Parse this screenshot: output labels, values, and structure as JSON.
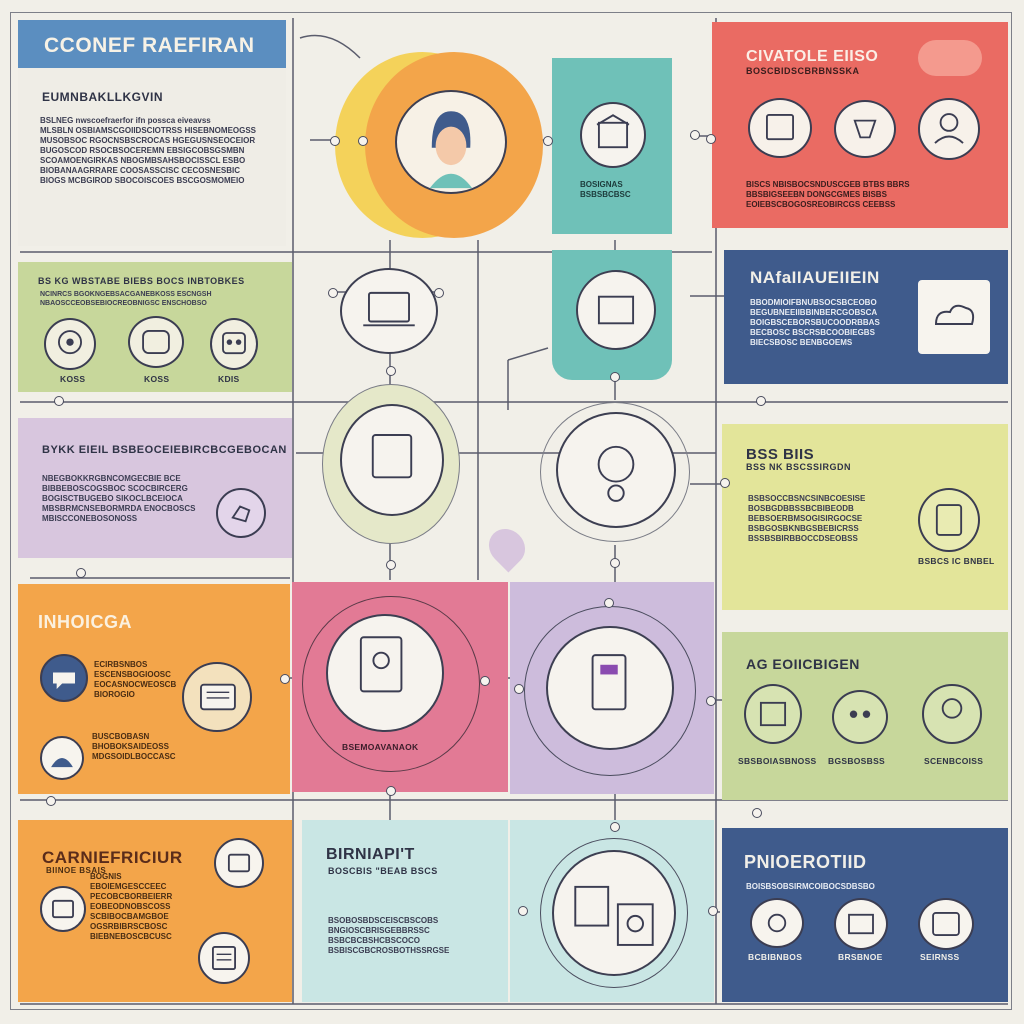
{
  "colors": {
    "background": "#f1efe8",
    "blue_header": "#5b8ec0",
    "green": "#c7d79b",
    "lavender": "#d8c6de",
    "orange": "#f3a54a",
    "teal": "#6fc1b8",
    "coral": "#ea6b63",
    "navy": "#3f5b8c",
    "yellow": "#e3e59a",
    "pink": "#e27a95",
    "purple": "#cdbcdc",
    "light_teal": "#c9e6e4"
  },
  "panels": {
    "header": {
      "title": "CCONEF RAEFIRAN",
      "subtitle": "EUMNBAKLLKGVIN",
      "body": "BSLNEG nwscoefraerfor ifn possca eiveavss\nMLSBLN OSBIAMSCGOIIDSCIOTRSS HISEBNOMEOGSS\nMUSOBSOC RGOCNSBSCROCAS HGEGUSNSEOCEIOR\nBUGOSCOD RSOCBSOCEREMN EBSIGCOBSGSMBN\nSCOAMOENGIRKAS NBOGMBSAHSBOCISSCL ESBO\nBIOBANAAGRRARE COOSASSCISC CECOSNESBIC\nBIOGS MCBGIROD SBOCOISCOES BSCGOSMOMEIO"
    },
    "green": {
      "title": "BS KG WBSTABE BIEBS BOCS INBTOBKES",
      "body": "NCINRCS BGOKNGEBSACGANEBKOSS ESCNGSH\nNBAOSCCEOBSEBIOCREOBNIGSC ENSCHOBSO",
      "captions": [
        "KOSS",
        "KOSS",
        "KDIS"
      ]
    },
    "lavender": {
      "title": "BYKK EIEIL BSBEOCEIEBIRCBCGEBOCAN",
      "body": "NBEGBOKKRGBNCOMGECBIE BCE\nBIBBEBOSCOGSBOC SCOCBIRCERG\nBOGISCTBUGEBO SIKOCLBCEIOCA\nMBSBRMCNSEBORMRDA ENOCBOSCS\nMBISCCONEBOSONOSS"
    },
    "orange1": {
      "title": "INHOICGA",
      "body1": "ECIRBSNBOS\nESCENSBOGIOOSC\nEOCASNOCWEOSCB\nBIOROGIO",
      "body2": "BUSCBOBASN\nBHOBOKSAIDEOSS\nMDGSOIDLBOCCASC"
    },
    "orange2": {
      "title": "CARNIEFRICIUR",
      "subtitle": "BIINOE BSAIS",
      "body": "BOGNIS\nEBOIEMGESCCEEC\nPECOBCBORBEIERR\nEOBEODNOBSCOSS\nSCBIBOCBAMGBOE\nOGSRBIBRSCBOSC\nBIEBNEBOSCBCUSC"
    },
    "coral": {
      "title": "CIVATOLE EIISO",
      "subtitle": "BOSCBIDSCBRBNSSKA",
      "body": "BISCS NBISBOCSNDUSCGEB BTBS BBRS\nBBSBIGSEEBN DONGCGMES BISBS\nEOIEBSCBOGOSREOBIRCGS CEEBSS"
    },
    "navy1": {
      "title": "NAfaIIAUEIIEIN",
      "body": "BBODMIOIFBNUBSOCSBCEOBO\nBEGUBNEEIIBBINBERCGOBSCA\nBOIGBSCEBORSBUCOODRBBAS\nBECBOSC BSCRSBCOOBIEGBS\nBIECSBOSC BENBGOEMS"
    },
    "yellow": {
      "title": "BSS BIIS",
      "subtitle": "BSS NK BSCSSIRGDN",
      "body": "BSBSOCCBSNCSINBCOESISE\nBOSBGDBBSSBCBIBEODB\nBEBSOERBMSOGISIRGOCSE\nBSBGOSBKNBGSBEBICRSS\nBSSBSBIRBBOCCDSEOBSS",
      "caption": "BSBCS IC BNBEL"
    },
    "green2": {
      "title": "AG EOIICBIGEN",
      "captions": [
        "SBSBOIASBNOSS",
        "BGSBOSBSS",
        "SCENBCOISS"
      ]
    },
    "navy2": {
      "title": "PNIOEROTIID",
      "body": "BOISBSOBSIRMCOIBOCSDBSBO",
      "captions": [
        "BCBIBNBOS",
        "BRSBNOE",
        "SEIRNSS"
      ]
    },
    "pink": {
      "caption": "BSEMOAVANAOK"
    },
    "teal_light": {
      "title": "BIRNIAPI'T",
      "subtitle": "BOSCBIS \"BEAB BSCS",
      "body": "BSOBOSBDSCEISCBSCOBS\nBNGIOSCBRISGEBBRSSC\nBSBCBCBSHCBSCOCO\nBSBISCGBCROSBOTHSSRGSE"
    },
    "teal_column": {
      "body": "BOSIGNAS\nBSBSBCBSC"
    }
  }
}
